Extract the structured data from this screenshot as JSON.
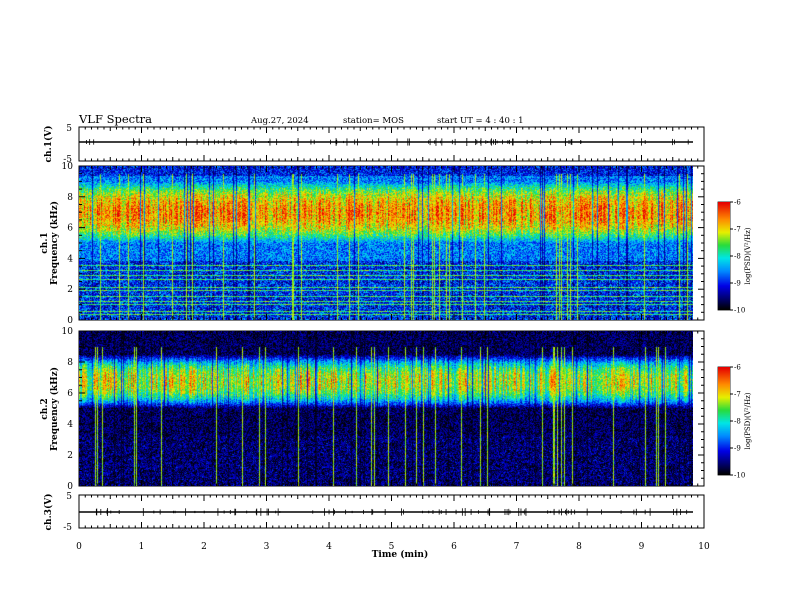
{
  "header": {
    "title": "VLF Spectra",
    "date": "Aug.27, 2024",
    "station": "station= MOS",
    "start": "start UT =  4 : 40 : 1"
  },
  "chart_data": [
    {
      "type": "line",
      "panel": "ch1-waveform",
      "ylabel": "ch.1(V)",
      "ylim": [
        -5,
        5
      ],
      "yticks": [
        "5",
        "-5"
      ],
      "xlim": [
        0,
        10
      ],
      "series": [
        {
          "x": [
            0,
            9.83
          ],
          "values": [
            0,
            0
          ]
        }
      ]
    },
    {
      "type": "heatmap",
      "panel": "ch1-spectrogram",
      "ylabel": "ch.1",
      "ylabel2": "Frequency (kHz)",
      "ylim": [
        0,
        10
      ],
      "yticks": [
        "0",
        "2",
        "4",
        "6",
        "8",
        "10"
      ],
      "xlim": [
        0,
        10
      ],
      "data_extent_min": 9.83,
      "intense_band_khz": [
        5,
        9
      ],
      "narrowband_lines_khz": [
        0.3,
        0.5,
        1.0,
        1.2,
        1.5,
        1.9,
        2.1,
        2.6,
        2.9,
        3.2,
        3.5
      ],
      "colorbar": {
        "label": "log(PSD)(V²/Hz)",
        "ticks": [
          "-6",
          "-7",
          "-8",
          "-9",
          "-10"
        ],
        "range": [
          -10,
          -6
        ]
      }
    },
    {
      "type": "heatmap",
      "panel": "ch2-spectrogram",
      "ylabel": "ch.2",
      "ylabel2": "Frequency (kHz)",
      "ylim": [
        0,
        10
      ],
      "yticks": [
        "0",
        "2",
        "4",
        "6",
        "8",
        "10"
      ],
      "xlim": [
        0,
        10
      ],
      "data_extent_min": 9.83,
      "intense_band_khz": [
        5,
        8.5
      ],
      "colorbar": {
        "label": "log(PSD)(V²/Hz)",
        "ticks": [
          "-6",
          "-7",
          "-8",
          "-9",
          "-10"
        ],
        "range": [
          -10,
          -6
        ]
      }
    },
    {
      "type": "line",
      "panel": "ch3-waveform",
      "ylabel": "ch.3(V)",
      "ylim": [
        -5,
        5
      ],
      "yticks": [
        "5",
        "-5"
      ],
      "xlim": [
        0,
        10
      ],
      "series": [
        {
          "x": [
            0,
            9.83
          ],
          "values": [
            0,
            0
          ]
        }
      ]
    }
  ],
  "xaxis": {
    "label": "Time  (min)",
    "ticks": [
      "0",
      "1",
      "2",
      "3",
      "4",
      "5",
      "6",
      "7",
      "8",
      "9",
      "10"
    ],
    "range": [
      0,
      10
    ]
  },
  "colors": {
    "waveform": "#000000",
    "background": "#000000"
  }
}
